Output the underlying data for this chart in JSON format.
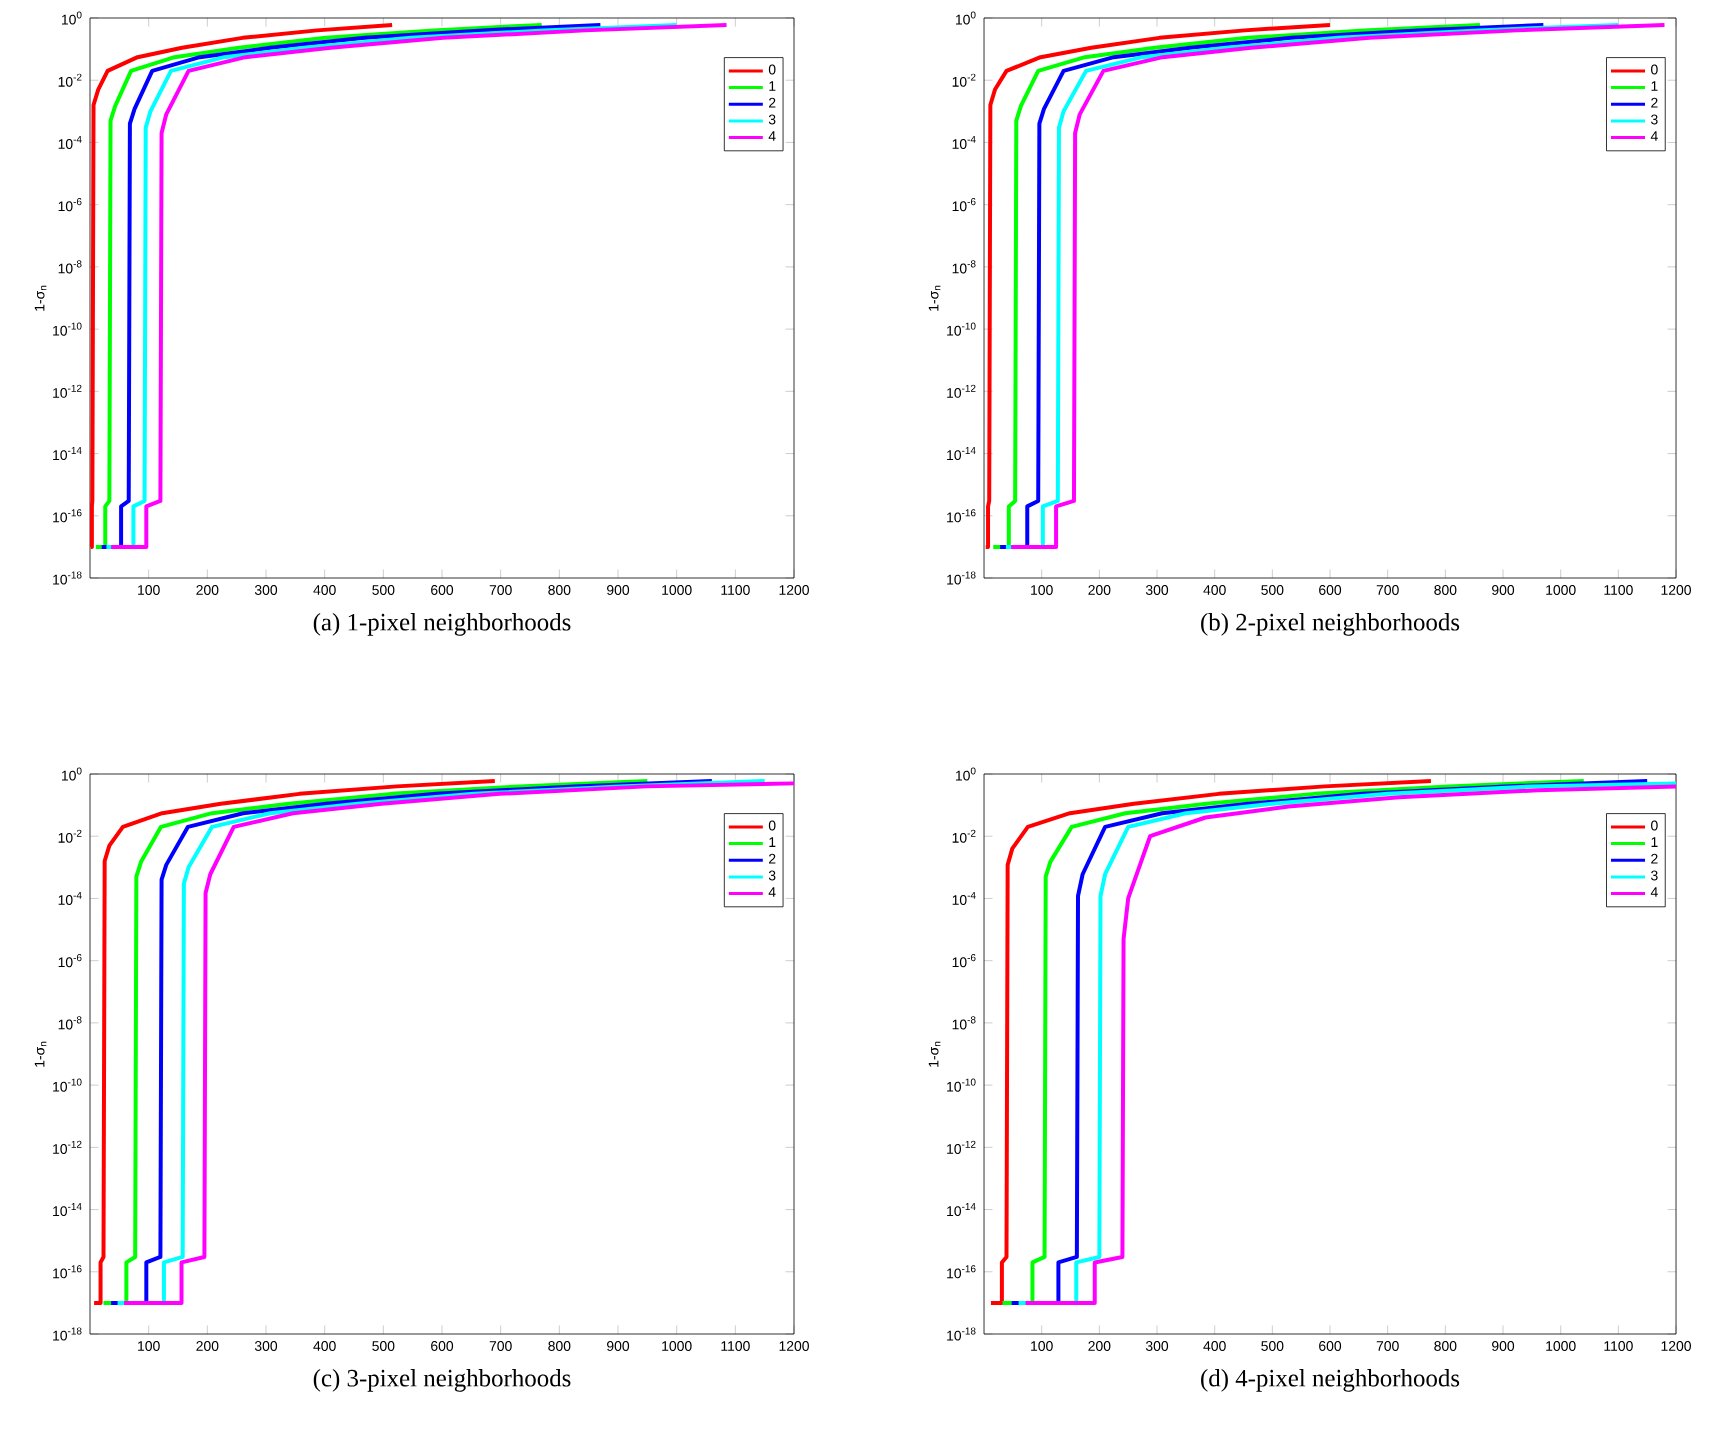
{
  "chart_data": [
    {
      "type": "line",
      "title": "(a) 1-pixel neighborhoods",
      "ylabel": "1-σ$_{n}$",
      "log": true,
      "legend": "top right",
      "xlim": [
        0,
        1200
      ],
      "xticks": [
        100,
        200,
        300,
        400,
        500,
        600,
        700,
        800,
        900,
        1000,
        1100,
        1200
      ],
      "ylim": [
        1e-18,
        1
      ],
      "yticks": [
        {
          "value": 1e-18,
          "label": "10$^{-18}$"
        },
        {
          "value": 1e-16,
          "label": "10$^{-16}$"
        },
        {
          "value": 1e-14,
          "label": "10$^{-14}$"
        },
        {
          "value": 1e-12,
          "label": "10$^{-12}$"
        },
        {
          "value": 1e-10,
          "label": "10$^{-10}$"
        },
        {
          "value": 1e-08,
          "label": "10$^{-8}$"
        },
        {
          "value": 1e-06,
          "label": "10$^{-6}$"
        },
        {
          "value": 0.0001,
          "label": "10$^{-4}$"
        },
        {
          "value": 0.01,
          "label": "10$^{-2}$"
        },
        {
          "value": 1,
          "label": "10$^{0}$"
        }
      ],
      "series": [
        {
          "name": "0",
          "color": "#ff0000",
          "x": [
            1.2,
            3.2,
            3.2,
            4,
            6,
            14,
            30,
            81,
            157,
            260,
            387,
            515
          ],
          "values": [
            1e-17,
            1e-17,
            2e-16,
            3e-16,
            0.0016,
            0.005,
            0.02,
            0.055,
            0.11,
            0.23,
            0.4,
            0.6
          ]
        },
        {
          "name": "1",
          "color": "#00ff00",
          "x": [
            10,
            26,
            26,
            33,
            35,
            43,
            70,
            144,
            254,
            402,
            586,
            770
          ],
          "values": [
            1e-17,
            1e-17,
            2e-16,
            3e-16,
            0.0005,
            0.0015,
            0.02,
            0.055,
            0.11,
            0.23,
            0.4,
            0.6
          ]
        },
        {
          "name": "2",
          "color": "#0000ff",
          "x": [
            20,
            53,
            53,
            66,
            68,
            76,
            106,
            187,
            307,
            468,
            669,
            870
          ],
          "values": [
            1e-17,
            1e-17,
            2e-16,
            3e-16,
            0.0004,
            0.0012,
            0.02,
            0.055,
            0.11,
            0.23,
            0.4,
            0.6
          ]
        },
        {
          "name": "3",
          "color": "#00ffff",
          "x": [
            28,
            74,
            74,
            93,
            95,
            103,
            138,
            229,
            365,
            547,
            773,
            1000
          ],
          "values": [
            1e-17,
            1e-17,
            2e-16,
            3e-16,
            0.0003,
            0.001,
            0.02,
            0.055,
            0.11,
            0.23,
            0.4,
            0.6
          ]
        },
        {
          "name": "4",
          "color": "#ff00ff",
          "x": [
            36,
            96,
            96,
            120,
            122,
            130,
            168,
            265,
            410,
            602,
            844,
            1085
          ],
          "values": [
            1e-17,
            1e-17,
            2e-16,
            3e-16,
            0.0002,
            0.0008,
            0.02,
            0.055,
            0.11,
            0.23,
            0.4,
            0.6
          ]
        }
      ]
    },
    {
      "type": "line",
      "title": "(b) 2-pixel neighborhoods",
      "ylabel": "1-σ$_{n}$",
      "log": true,
      "legend": "top right",
      "xlim": [
        0,
        1200
      ],
      "xticks": [
        100,
        200,
        300,
        400,
        500,
        600,
        700,
        800,
        900,
        1000,
        1100,
        1200
      ],
      "ylim": [
        1e-18,
        1
      ],
      "yticks": [
        {
          "value": 1e-18,
          "label": "10$^{-18}$"
        },
        {
          "value": 1e-16,
          "label": "10$^{-16}$"
        },
        {
          "value": 1e-14,
          "label": "10$^{-14}$"
        },
        {
          "value": 1e-12,
          "label": "10$^{-12}$"
        },
        {
          "value": 1e-10,
          "label": "10$^{-10}$"
        },
        {
          "value": 1e-08,
          "label": "10$^{-8}$"
        },
        {
          "value": 1e-06,
          "label": "10$^{-6}$"
        },
        {
          "value": 0.0001,
          "label": "10$^{-4}$"
        },
        {
          "value": 0.01,
          "label": "10$^{-2}$"
        },
        {
          "value": 1,
          "label": "10$^{0}$"
        }
      ],
      "series": [
        {
          "name": "0",
          "color": "#ff0000",
          "x": [
            3,
            7,
            7,
            9,
            11,
            19,
            39,
            98,
            186,
            304,
            452,
            600
          ],
          "values": [
            1e-17,
            1e-17,
            2e-16,
            3e-16,
            0.0016,
            0.005,
            0.02,
            0.055,
            0.11,
            0.23,
            0.4,
            0.6
          ]
        },
        {
          "name": "1",
          "color": "#00ff00",
          "x": [
            16,
            43,
            43,
            54,
            56,
            64,
            94,
            175,
            296,
            457,
            659,
            860
          ],
          "values": [
            1e-17,
            1e-17,
            2e-16,
            3e-16,
            0.0005,
            0.0015,
            0.02,
            0.055,
            0.11,
            0.23,
            0.4,
            0.6
          ]
        },
        {
          "name": "2",
          "color": "#0000ff",
          "x": [
            28,
            75,
            75,
            94,
            96,
            104,
            138,
            225,
            357,
            532,
            751,
            970
          ],
          "values": [
            1e-17,
            1e-17,
            2e-16,
            3e-16,
            0.0004,
            0.0012,
            0.02,
            0.055,
            0.11,
            0.23,
            0.4,
            0.6
          ]
        },
        {
          "name": "3",
          "color": "#00ffff",
          "x": [
            38,
            102,
            102,
            128,
            130,
            138,
            177,
            274,
            420,
            614,
            857,
            1100
          ],
          "values": [
            1e-17,
            1e-17,
            2e-16,
            3e-16,
            0.0003,
            0.001,
            0.02,
            0.055,
            0.11,
            0.23,
            0.4,
            0.6
          ]
        },
        {
          "name": "4",
          "color": "#ff00ff",
          "x": [
            47,
            125,
            125,
            156,
            158,
            166,
            207,
            310,
            463,
            668,
            924,
            1180
          ],
          "values": [
            1e-17,
            1e-17,
            2e-16,
            3e-16,
            0.0002,
            0.0008,
            0.02,
            0.055,
            0.11,
            0.23,
            0.4,
            0.6
          ]
        }
      ]
    },
    {
      "type": "line",
      "title": "(c) 3-pixel neighborhoods",
      "ylabel": "1-σ$_{n}$",
      "log": true,
      "legend": "top right",
      "xlim": [
        0,
        1200
      ],
      "xticks": [
        100,
        200,
        300,
        400,
        500,
        600,
        700,
        800,
        900,
        1000,
        1100,
        1200
      ],
      "ylim": [
        1e-18,
        1
      ],
      "yticks": [
        {
          "value": 1e-18,
          "label": "10$^{-18}$"
        },
        {
          "value": 1e-16,
          "label": "10$^{-16}$"
        },
        {
          "value": 1e-14,
          "label": "10$^{-14}$"
        },
        {
          "value": 1e-12,
          "label": "10$^{-12}$"
        },
        {
          "value": 1e-10,
          "label": "10$^{-10}$"
        },
        {
          "value": 1e-08,
          "label": "10$^{-8}$"
        },
        {
          "value": 1e-06,
          "label": "10$^{-6}$"
        },
        {
          "value": 0.0001,
          "label": "10$^{-4}$"
        },
        {
          "value": 0.01,
          "label": "10$^{-2}$"
        },
        {
          "value": 1,
          "label": "10$^{0}$"
        }
      ],
      "series": [
        {
          "name": "0",
          "color": "#ff0000",
          "x": [
            7,
            18,
            18,
            23,
            25,
            33,
            56,
            123,
            223,
            357,
            523,
            690
          ],
          "values": [
            1e-17,
            1e-17,
            2e-16,
            3e-16,
            0.0016,
            0.005,
            0.02,
            0.055,
            0.11,
            0.23,
            0.4,
            0.6
          ]
        },
        {
          "name": "1",
          "color": "#00ff00",
          "x": [
            23,
            62,
            62,
            77,
            79,
            87,
            121,
            208,
            339,
            514,
            732,
            950
          ],
          "values": [
            1e-17,
            1e-17,
            2e-16,
            3e-16,
            0.0005,
            0.0015,
            0.02,
            0.055,
            0.11,
            0.23,
            0.4,
            0.6
          ]
        },
        {
          "name": "2",
          "color": "#0000ff",
          "x": [
            36,
            96,
            96,
            120,
            122,
            130,
            167,
            261,
            402,
            590,
            825,
            1060
          ],
          "values": [
            1e-17,
            1e-17,
            2e-16,
            3e-16,
            0.0004,
            0.0012,
            0.02,
            0.055,
            0.11,
            0.23,
            0.4,
            0.6
          ]
        },
        {
          "name": "3",
          "color": "#00ffff",
          "x": [
            47,
            126,
            126,
            158,
            160,
            168,
            208,
            307,
            456,
            654,
            902,
            1150
          ],
          "values": [
            1e-17,
            1e-17,
            2e-16,
            3e-16,
            0.0003,
            0.001,
            0.02,
            0.055,
            0.11,
            0.23,
            0.4,
            0.6
          ]
        },
        {
          "name": "4",
          "color": "#ff00ff",
          "x": [
            58,
            156,
            156,
            195,
            197,
            205,
            245,
            346,
            497,
            698,
            949,
            1200
          ],
          "values": [
            1e-17,
            1e-17,
            2e-16,
            3e-16,
            0.00015,
            0.0006,
            0.02,
            0.055,
            0.11,
            0.23,
            0.4,
            0.5
          ]
        }
      ]
    },
    {
      "type": "line",
      "title": "(d) 4-pixel neighborhoods",
      "ylabel": "1-σ$_{n}$",
      "log": true,
      "legend": "top right",
      "xlim": [
        0,
        1200
      ],
      "xticks": [
        100,
        200,
        300,
        400,
        500,
        600,
        700,
        800,
        900,
        1000,
        1100,
        1200
      ],
      "ylim": [
        1e-18,
        1
      ],
      "yticks": [
        {
          "value": 1e-18,
          "label": "10$^{-18}$"
        },
        {
          "value": 1e-16,
          "label": "10$^{-16}$"
        },
        {
          "value": 1e-14,
          "label": "10$^{-14}$"
        },
        {
          "value": 1e-12,
          "label": "10$^{-12}$"
        },
        {
          "value": 1e-10,
          "label": "10$^{-10}$"
        },
        {
          "value": 1e-08,
          "label": "10$^{-8}$"
        },
        {
          "value": 1e-06,
          "label": "10$^{-6}$"
        },
        {
          "value": 0.0001,
          "label": "10$^{-4}$"
        },
        {
          "value": 0.01,
          "label": "10$^{-2}$"
        },
        {
          "value": 1,
          "label": "10$^{0}$"
        }
      ],
      "series": [
        {
          "name": "0",
          "color": "#ff0000",
          "x": [
            12,
            31,
            31,
            39,
            41,
            49,
            76,
            149,
            260,
            407,
            591,
            775
          ],
          "values": [
            1e-17,
            1e-17,
            2e-16,
            3e-16,
            0.0012,
            0.004,
            0.02,
            0.055,
            0.11,
            0.23,
            0.4,
            0.6
          ]
        },
        {
          "name": "1",
          "color": "#00ff00",
          "x": [
            32,
            84,
            84,
            105,
            107,
            115,
            152,
            245,
            386,
            573,
            806,
            1040
          ],
          "values": [
            1e-17,
            1e-17,
            2e-16,
            3e-16,
            0.0005,
            0.0015,
            0.02,
            0.055,
            0.11,
            0.23,
            0.4,
            0.6
          ]
        },
        {
          "name": "2",
          "color": "#0000ff",
          "x": [
            48,
            129,
            129,
            161,
            163,
            171,
            210,
            309,
            458,
            656,
            903,
            1150
          ],
          "values": [
            1e-17,
            1e-17,
            2e-16,
            3e-16,
            0.00012,
            0.0006,
            0.02,
            0.055,
            0.11,
            0.23,
            0.4,
            0.6
          ]
        },
        {
          "name": "3",
          "color": "#00ffff",
          "x": [
            60,
            160,
            160,
            200,
            202,
            210,
            250,
            350,
            500,
            700,
            950,
            1200
          ],
          "values": [
            1e-17,
            1e-17,
            2e-16,
            3e-16,
            0.00012,
            0.0006,
            0.02,
            0.055,
            0.11,
            0.23,
            0.4,
            0.5
          ]
        },
        {
          "name": "4",
          "color": "#ff00ff",
          "x": [
            72,
            192,
            192,
            240,
            242,
            250,
            288,
            384,
            528,
            720,
            960,
            1200
          ],
          "values": [
            1e-17,
            1e-17,
            2e-16,
            3e-16,
            5e-06,
            0.0001,
            0.01,
            0.04,
            0.09,
            0.18,
            0.3,
            0.4
          ]
        }
      ]
    }
  ]
}
